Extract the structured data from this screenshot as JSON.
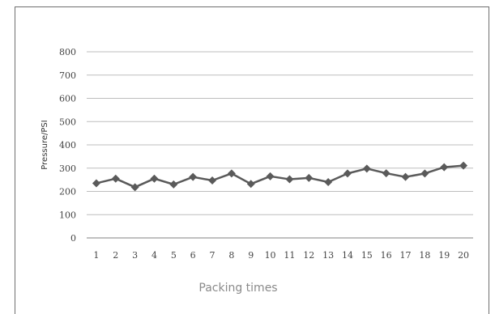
{
  "chart_data": {
    "type": "line",
    "title": "",
    "xlabel": "Packing times",
    "ylabel": "Pressure/PSI",
    "x": [
      1,
      2,
      3,
      4,
      5,
      6,
      7,
      8,
      9,
      10,
      11,
      12,
      13,
      14,
      15,
      16,
      17,
      18,
      19,
      20
    ],
    "series": [
      {
        "values": [
          235,
          255,
          218,
          255,
          230,
          262,
          247,
          277,
          232,
          265,
          252,
          258,
          240,
          277,
          298,
          278,
          262,
          277,
          304,
          311
        ]
      }
    ],
    "ylim": [
      0,
      800
    ],
    "yticks": [
      0,
      100,
      200,
      300,
      400,
      500,
      600,
      700,
      800
    ],
    "grid": true,
    "legend": "none",
    "colors": {
      "line": "#5a5a5a",
      "marker": "#5a5a5a",
      "grid": "#bdbdbd",
      "axis": "#9a9a9a",
      "frame": "#6f6f6f"
    }
  }
}
